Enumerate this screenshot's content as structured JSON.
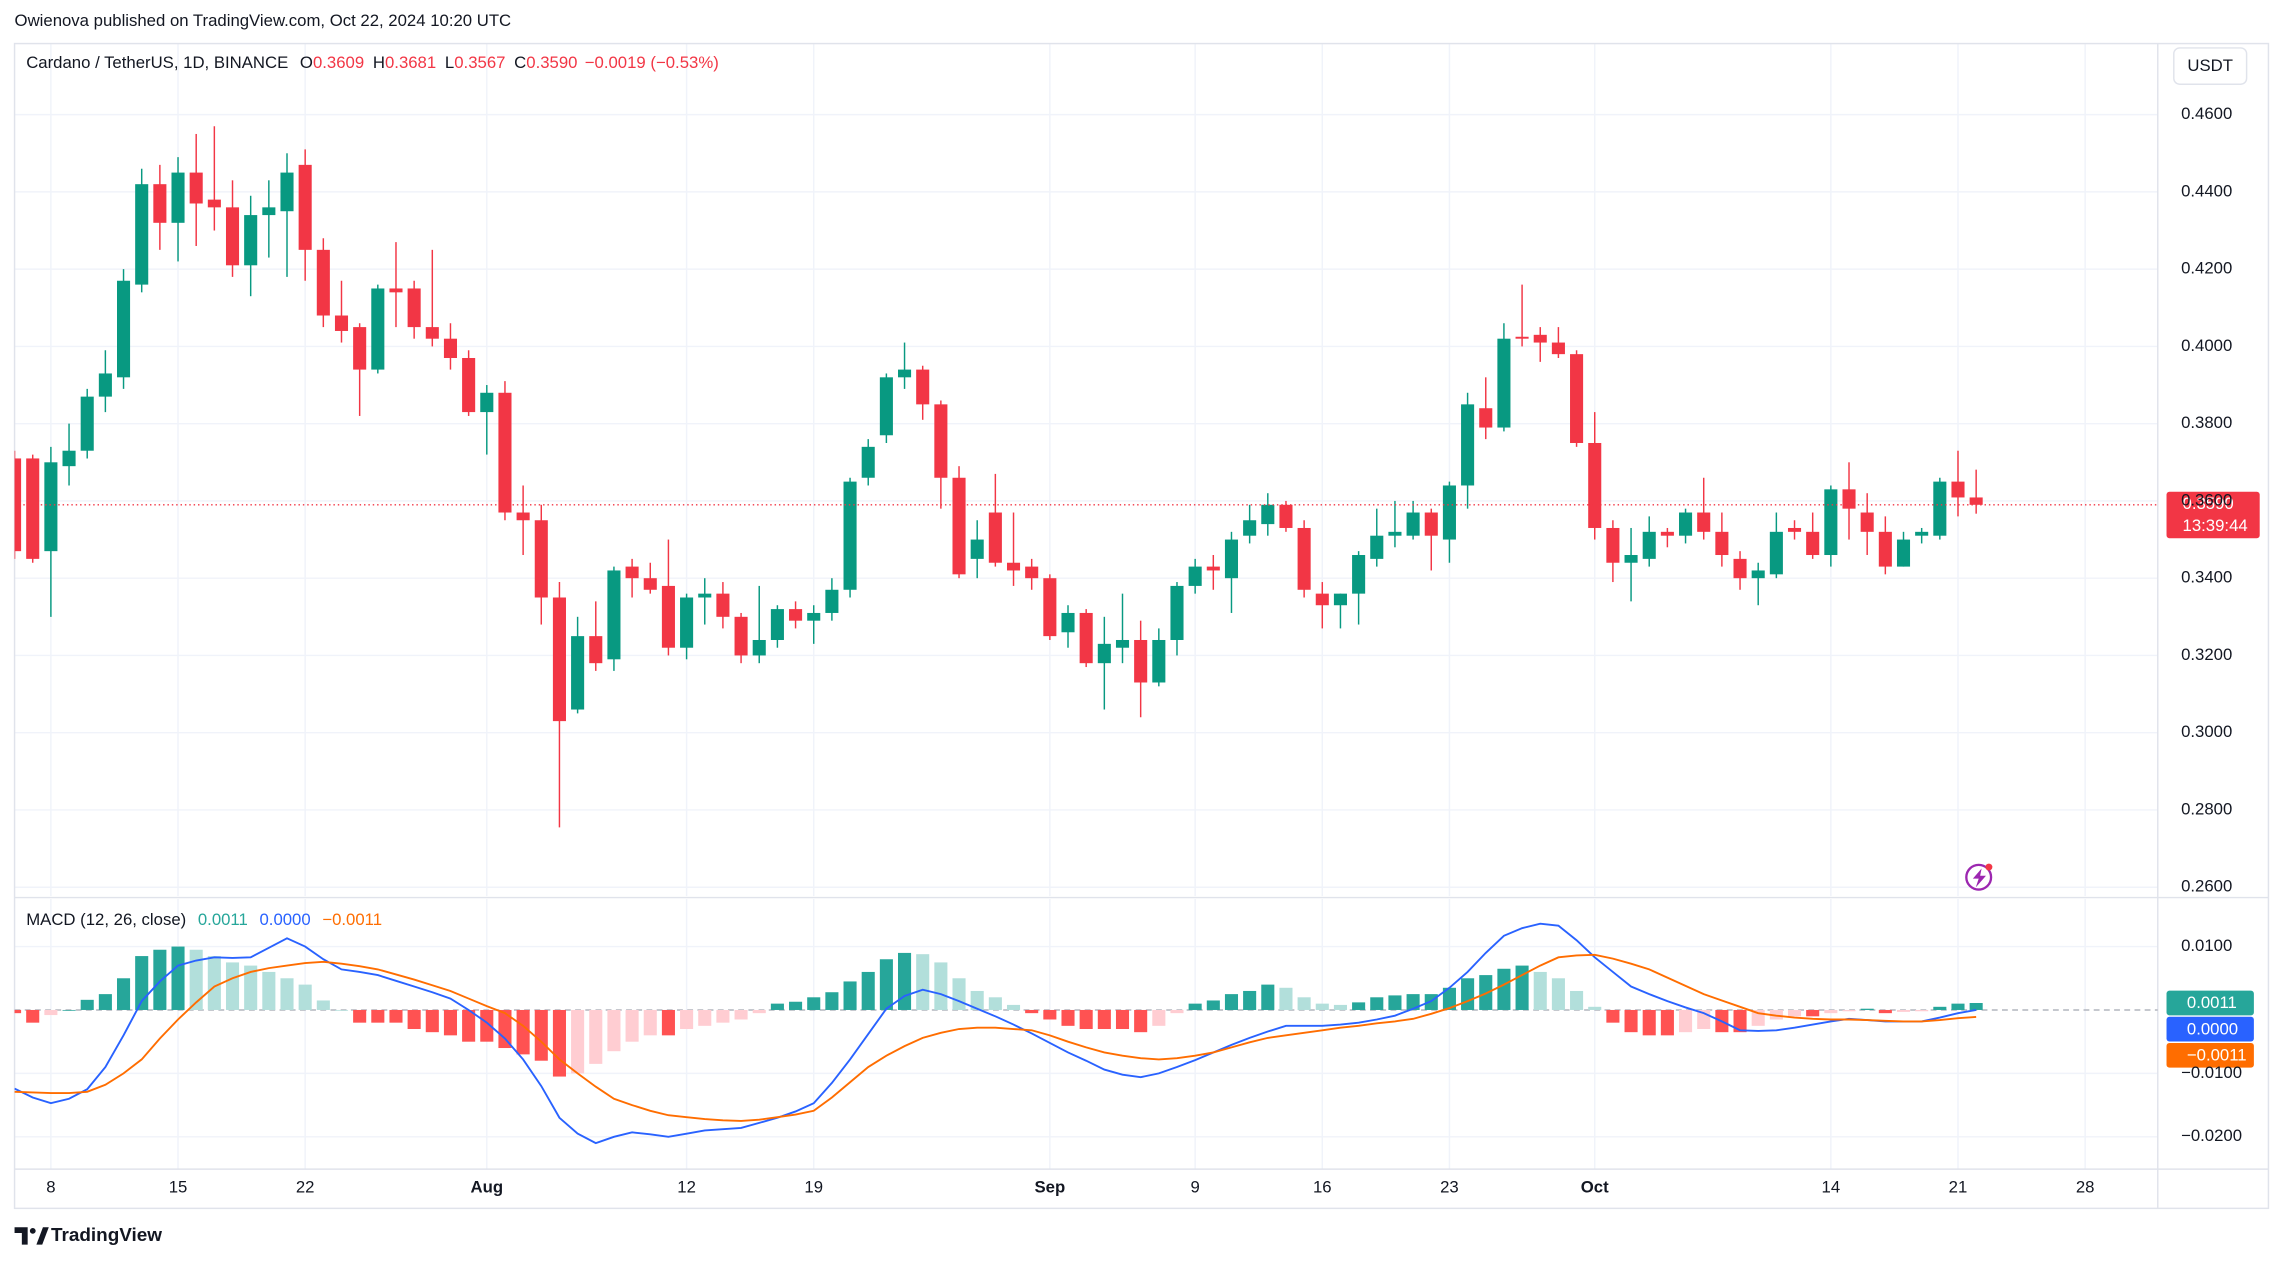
{
  "attribution": "Owienova published on TradingView.com, Oct 22, 2024 10:20 UTC",
  "currency": "USDT",
  "brand": "TradingView",
  "chart_data": [
    {
      "type": "candlestick",
      "legend": {
        "symbol": "Cardano / TetherUS, 1D, BINANCE",
        "ohlc": [
          {
            "key": "O",
            "value": "0.3609"
          },
          {
            "key": "H",
            "value": "0.3681"
          },
          {
            "key": "L",
            "value": "0.3567"
          },
          {
            "key": "C",
            "value": "0.3590"
          }
        ],
        "change": "−0.0019 (−0.53%)"
      },
      "last_price_label": "0.3590",
      "countdown": "13:39:44",
      "up_color": "#089981",
      "down_color": "#f23645",
      "grid": true,
      "xlim": [
        "2024-07-06",
        "2024-11-01"
      ],
      "xticks": [
        {
          "value": "2024-07-08",
          "label": "8"
        },
        {
          "value": "2024-07-15",
          "label": "15"
        },
        {
          "value": "2024-07-22",
          "label": "22"
        },
        {
          "value": "2024-08-01",
          "label": "Aug"
        },
        {
          "value": "2024-08-12",
          "label": "12"
        },
        {
          "value": "2024-08-19",
          "label": "19"
        },
        {
          "value": "2024-09-01",
          "label": "Sep"
        },
        {
          "value": "2024-09-09",
          "label": "9"
        },
        {
          "value": "2024-09-16",
          "label": "16"
        },
        {
          "value": "2024-09-23",
          "label": "23"
        },
        {
          "value": "2024-10-01",
          "label": "Oct"
        },
        {
          "value": "2024-10-14",
          "label": "14"
        },
        {
          "value": "2024-10-21",
          "label": "21"
        },
        {
          "value": "2024-10-28",
          "label": "28"
        }
      ],
      "ylim": [
        0.2577,
        0.4784
      ],
      "yticks": [
        {
          "value": 0.26,
          "label": "0.2600"
        },
        {
          "value": 0.28,
          "label": "0.2800"
        },
        {
          "value": 0.3,
          "label": "0.3000"
        },
        {
          "value": 0.32,
          "label": "0.3200"
        },
        {
          "value": 0.34,
          "label": "0.3400"
        },
        {
          "value": 0.36,
          "label": "0.3600"
        },
        {
          "value": 0.38,
          "label": "0.3800"
        },
        {
          "value": 0.4,
          "label": "0.4000"
        },
        {
          "value": 0.42,
          "label": "0.4200"
        },
        {
          "value": 0.44,
          "label": "0.4400"
        },
        {
          "value": 0.46,
          "label": "0.4600"
        }
      ],
      "x": [
        "2024-07-06",
        "2024-07-07",
        "2024-07-08",
        "2024-07-09",
        "2024-07-10",
        "2024-07-11",
        "2024-07-12",
        "2024-07-13",
        "2024-07-14",
        "2024-07-15",
        "2024-07-16",
        "2024-07-17",
        "2024-07-18",
        "2024-07-19",
        "2024-07-20",
        "2024-07-21",
        "2024-07-22",
        "2024-07-23",
        "2024-07-24",
        "2024-07-25",
        "2024-07-26",
        "2024-07-27",
        "2024-07-28",
        "2024-07-29",
        "2024-07-30",
        "2024-07-31",
        "2024-08-01",
        "2024-08-02",
        "2024-08-03",
        "2024-08-04",
        "2024-08-05",
        "2024-08-06",
        "2024-08-07",
        "2024-08-08",
        "2024-08-09",
        "2024-08-10",
        "2024-08-11",
        "2024-08-12",
        "2024-08-13",
        "2024-08-14",
        "2024-08-15",
        "2024-08-16",
        "2024-08-17",
        "2024-08-18",
        "2024-08-19",
        "2024-08-20",
        "2024-08-21",
        "2024-08-22",
        "2024-08-23",
        "2024-08-24",
        "2024-08-25",
        "2024-08-26",
        "2024-08-27",
        "2024-08-28",
        "2024-08-29",
        "2024-08-30",
        "2024-08-31",
        "2024-09-01",
        "2024-09-02",
        "2024-09-03",
        "2024-09-04",
        "2024-09-05",
        "2024-09-06",
        "2024-09-07",
        "2024-09-08",
        "2024-09-09",
        "2024-09-10",
        "2024-09-11",
        "2024-09-12",
        "2024-09-13",
        "2024-09-14",
        "2024-09-15",
        "2024-09-16",
        "2024-09-17",
        "2024-09-18",
        "2024-09-19",
        "2024-09-20",
        "2024-09-21",
        "2024-09-22",
        "2024-09-23",
        "2024-09-24",
        "2024-09-25",
        "2024-09-26",
        "2024-09-27",
        "2024-09-28",
        "2024-09-29",
        "2024-09-30",
        "2024-10-01",
        "2024-10-02",
        "2024-10-03",
        "2024-10-04",
        "2024-10-05",
        "2024-10-06",
        "2024-10-07",
        "2024-10-08",
        "2024-10-09",
        "2024-10-10",
        "2024-10-11",
        "2024-10-12",
        "2024-10-13",
        "2024-10-14",
        "2024-10-15",
        "2024-10-16",
        "2024-10-17",
        "2024-10-18",
        "2024-10-19",
        "2024-10-20",
        "2024-10-21",
        "2024-10-22"
      ],
      "open": [
        0.371,
        0.371,
        0.347,
        0.369,
        0.373,
        0.387,
        0.392,
        0.416,
        0.442,
        0.432,
        0.445,
        0.438,
        0.436,
        0.421,
        0.434,
        0.435,
        0.447,
        0.425,
        0.408,
        0.405,
        0.394,
        0.415,
        0.415,
        0.405,
        0.402,
        0.397,
        0.383,
        0.388,
        0.357,
        0.355,
        0.335,
        0.306,
        0.325,
        0.319,
        0.343,
        0.34,
        0.338,
        0.322,
        0.335,
        0.336,
        0.33,
        0.32,
        0.324,
        0.332,
        0.329,
        0.331,
        0.337,
        0.366,
        0.377,
        0.392,
        0.394,
        0.385,
        0.366,
        0.345,
        0.357,
        0.344,
        0.343,
        0.34,
        0.326,
        0.331,
        0.318,
        0.322,
        0.324,
        0.313,
        0.324,
        0.338,
        0.343,
        0.34,
        0.351,
        0.354,
        0.359,
        0.353,
        0.336,
        0.333,
        0.336,
        0.345,
        0.351,
        0.351,
        0.357,
        0.35,
        0.364,
        0.384,
        0.379,
        0.4025,
        0.403,
        0.401,
        0.398,
        0.375,
        0.353,
        0.344,
        0.345,
        0.352,
        0.351,
        0.357,
        0.352,
        0.345,
        0.34,
        0.341,
        0.353,
        0.352,
        0.346,
        0.363,
        0.357,
        0.352,
        0.343,
        0.351,
        0.351,
        0.365,
        0.3609
      ],
      "high": [
        0.373,
        0.372,
        0.374,
        0.38,
        0.389,
        0.399,
        0.42,
        0.446,
        0.447,
        0.449,
        0.455,
        0.457,
        0.443,
        0.439,
        0.443,
        0.45,
        0.451,
        0.428,
        0.417,
        0.406,
        0.416,
        0.427,
        0.417,
        0.425,
        0.406,
        0.399,
        0.39,
        0.391,
        0.364,
        0.359,
        0.339,
        0.33,
        0.334,
        0.343,
        0.345,
        0.344,
        0.35,
        0.336,
        0.34,
        0.339,
        0.331,
        0.338,
        0.333,
        0.334,
        0.333,
        0.34,
        0.366,
        0.376,
        0.393,
        0.401,
        0.395,
        0.386,
        0.369,
        0.355,
        0.367,
        0.357,
        0.345,
        0.341,
        0.333,
        0.332,
        0.33,
        0.336,
        0.329,
        0.327,
        0.339,
        0.345,
        0.346,
        0.352,
        0.359,
        0.362,
        0.36,
        0.355,
        0.339,
        0.336,
        0.347,
        0.358,
        0.36,
        0.36,
        0.358,
        0.365,
        0.388,
        0.392,
        0.406,
        0.416,
        0.405,
        0.405,
        0.399,
        0.383,
        0.355,
        0.353,
        0.356,
        0.353,
        0.358,
        0.366,
        0.357,
        0.347,
        0.344,
        0.357,
        0.355,
        0.357,
        0.364,
        0.37,
        0.362,
        0.356,
        0.352,
        0.353,
        0.366,
        0.373,
        0.3681
      ],
      "low": [
        0.345,
        0.344,
        0.33,
        0.364,
        0.371,
        0.383,
        0.389,
        0.414,
        0.425,
        0.422,
        0.426,
        0.43,
        0.418,
        0.413,
        0.423,
        0.418,
        0.417,
        0.405,
        0.401,
        0.382,
        0.393,
        0.405,
        0.402,
        0.4,
        0.394,
        0.382,
        0.372,
        0.355,
        0.346,
        0.328,
        0.2755,
        0.305,
        0.316,
        0.316,
        0.335,
        0.336,
        0.32,
        0.319,
        0.328,
        0.327,
        0.318,
        0.318,
        0.322,
        0.327,
        0.323,
        0.329,
        0.335,
        0.364,
        0.375,
        0.389,
        0.381,
        0.358,
        0.34,
        0.34,
        0.343,
        0.338,
        0.337,
        0.324,
        0.322,
        0.317,
        0.306,
        0.318,
        0.304,
        0.312,
        0.32,
        0.336,
        0.337,
        0.331,
        0.349,
        0.351,
        0.352,
        0.335,
        0.327,
        0.327,
        0.328,
        0.343,
        0.348,
        0.35,
        0.342,
        0.344,
        0.358,
        0.376,
        0.378,
        0.4,
        0.396,
        0.397,
        0.374,
        0.35,
        0.339,
        0.334,
        0.343,
        0.348,
        0.349,
        0.35,
        0.343,
        0.337,
        0.333,
        0.34,
        0.35,
        0.345,
        0.343,
        0.35,
        0.346,
        0.341,
        0.343,
        0.349,
        0.35,
        0.356,
        0.3567
      ],
      "close": [
        0.347,
        0.345,
        0.37,
        0.373,
        0.387,
        0.393,
        0.417,
        0.442,
        0.432,
        0.445,
        0.437,
        0.436,
        0.421,
        0.434,
        0.436,
        0.445,
        0.425,
        0.408,
        0.404,
        0.394,
        0.415,
        0.414,
        0.405,
        0.402,
        0.397,
        0.383,
        0.388,
        0.357,
        0.355,
        0.335,
        0.303,
        0.325,
        0.318,
        0.342,
        0.34,
        0.337,
        0.322,
        0.335,
        0.336,
        0.33,
        0.32,
        0.324,
        0.332,
        0.329,
        0.331,
        0.337,
        0.365,
        0.374,
        0.392,
        0.394,
        0.385,
        0.366,
        0.341,
        0.35,
        0.344,
        0.342,
        0.34,
        0.325,
        0.331,
        0.318,
        0.323,
        0.324,
        0.313,
        0.324,
        0.338,
        0.343,
        0.342,
        0.35,
        0.355,
        0.359,
        0.353,
        0.337,
        0.333,
        0.336,
        0.346,
        0.351,
        0.352,
        0.357,
        0.351,
        0.364,
        0.385,
        0.379,
        0.402,
        0.402,
        0.401,
        0.398,
        0.375,
        0.353,
        0.344,
        0.346,
        0.352,
        0.351,
        0.357,
        0.352,
        0.346,
        0.34,
        0.342,
        0.352,
        0.352,
        0.346,
        0.363,
        0.358,
        0.352,
        0.343,
        0.35,
        0.352,
        0.365,
        0.3609,
        0.359
      ]
    },
    {
      "type": "macd",
      "title": "MACD (12, 26, close)",
      "ylim": [
        -0.0251,
        0.0175
      ],
      "yticks": [
        {
          "value": 0.01,
          "label": "0.0100"
        },
        {
          "value": -0.01,
          "label": "−0.0100"
        },
        {
          "value": -0.02,
          "label": "−0.0200"
        }
      ],
      "series": [
        {
          "type": "histogram",
          "color": "#26a69a",
          "colors": {
            "rise_above": "#26a69a",
            "fall_above": "#b2dfdb",
            "rise_below": "#ffcdd2",
            "fall_below": "#ff5252"
          },
          "last_label": "0.0011",
          "values": [
            -0.0005,
            -0.002,
            -0.0008,
            0,
            0.0016,
            0.0025,
            0.005,
            0.0085,
            0.0095,
            0.01,
            0.0095,
            0.0085,
            0.0075,
            0.007,
            0.006,
            0.005,
            0.004,
            0.0015,
            0,
            -0.002,
            -0.002,
            -0.002,
            -0.003,
            -0.0035,
            -0.004,
            -0.005,
            -0.005,
            -0.006,
            -0.007,
            -0.008,
            -0.0105,
            -0.01,
            -0.0085,
            -0.0065,
            -0.005,
            -0.004,
            -0.004,
            -0.003,
            -0.0025,
            -0.002,
            -0.0015,
            -0.0005,
            0.001,
            0.0013,
            0.002,
            0.0028,
            0.0045,
            0.006,
            0.008,
            0.009,
            0.0088,
            0.0075,
            0.005,
            0.003,
            0.002,
            0.0008,
            -0.0005,
            -0.0015,
            -0.0025,
            -0.003,
            -0.003,
            -0.003,
            -0.0035,
            -0.0025,
            -0.0005,
            0.001,
            0.0015,
            0.0025,
            0.003,
            0.004,
            0.0035,
            0.002,
            0.001,
            0.0008,
            0.0012,
            0.002,
            0.0023,
            0.0025,
            0.0025,
            0.0035,
            0.005,
            0.0055,
            0.0065,
            0.007,
            0.006,
            0.005,
            0.003,
            0.0005,
            -0.002,
            -0.0035,
            -0.004,
            -0.004,
            -0.0035,
            -0.003,
            -0.0035,
            -0.0035,
            -0.0025,
            -0.0015,
            -0.001,
            -0.001,
            -0.0005,
            -0.0002,
            0.0002,
            -0.0005,
            -0.0003,
            -0.0002,
            0.0005,
            0.001,
            0.0011
          ]
        },
        {
          "type": "line",
          "color": "#2962ff",
          "last_label": "0.0000",
          "values": [
            -0.0124,
            -0.0138,
            -0.0147,
            -0.014,
            -0.0125,
            -0.009,
            -0.004,
            0.0014,
            0.0045,
            0.007,
            0.0078,
            0.0083,
            0.0082,
            0.0083,
            0.0098,
            0.0113,
            0.01,
            0.008,
            0.0064,
            0.006,
            0.0055,
            0.0046,
            0.0037,
            0.0028,
            0.0018,
            0,
            -0.002,
            -0.0045,
            -0.0078,
            -0.012,
            -0.017,
            -0.0195,
            -0.021,
            -0.02,
            -0.0193,
            -0.0196,
            -0.02,
            -0.0195,
            -0.019,
            -0.0188,
            -0.0186,
            -0.0178,
            -0.017,
            -0.016,
            -0.0147,
            -0.0115,
            -0.0078,
            -0.0038,
            0.0002,
            0.0022,
            0.0032,
            0.0025,
            0.0014,
            0.0002,
            -0.001,
            -0.0023,
            -0.0037,
            -0.0052,
            -0.0067,
            -0.008,
            -0.0094,
            -0.0102,
            -0.0106,
            -0.01,
            -0.009,
            -0.0079,
            -0.0067,
            -0.0055,
            -0.0044,
            -0.0034,
            -0.0025,
            -0.0025,
            -0.0025,
            -0.0023,
            -0.002,
            -0.0015,
            -0.0009,
            0.0002,
            0.0014,
            0.0035,
            0.006,
            0.009,
            0.0117,
            0.0129,
            0.0136,
            0.0133,
            0.011,
            0.0083,
            0.006,
            0.0037,
            0.0025,
            0.0014,
            0.0004,
            -0.0005,
            -0.0018,
            -0.0032,
            -0.0033,
            -0.0032,
            -0.0028,
            -0.0023,
            -0.0018,
            -0.0014,
            -0.0016,
            -0.0018,
            -0.0018,
            -0.0018,
            -0.0012,
            -0.0005,
            0
          ]
        },
        {
          "type": "line",
          "color": "#ff6d00",
          "last_label": "−0.0011",
          "values": [
            -0.0129,
            -0.013,
            -0.0131,
            -0.0131,
            -0.0129,
            -0.0118,
            -0.01,
            -0.0078,
            -0.0045,
            -0.0015,
            0.0012,
            0.0037,
            0.005,
            0.006,
            0.0066,
            0.007,
            0.0074,
            0.0076,
            0.0073,
            0.0069,
            0.0064,
            0.0056,
            0.0048,
            0.0039,
            0.003,
            0.0018,
            0.0006,
            -0.0005,
            -0.0025,
            -0.005,
            -0.0078,
            -0.01,
            -0.0121,
            -0.014,
            -0.015,
            -0.0159,
            -0.0166,
            -0.0169,
            -0.0172,
            -0.0174,
            -0.0175,
            -0.0173,
            -0.0169,
            -0.0165,
            -0.0159,
            -0.0138,
            -0.0114,
            -0.009,
            -0.0072,
            -0.0057,
            -0.0044,
            -0.0036,
            -0.003,
            -0.0028,
            -0.0028,
            -0.003,
            -0.0032,
            -0.004,
            -0.005,
            -0.0059,
            -0.0067,
            -0.0072,
            -0.0076,
            -0.0078,
            -0.0076,
            -0.0072,
            -0.0067,
            -0.0059,
            -0.0051,
            -0.0044,
            -0.004,
            -0.0036,
            -0.0032,
            -0.0028,
            -0.0025,
            -0.0021,
            -0.0018,
            -0.0014,
            -0.0006,
            0.0003,
            0.0014,
            0.0026,
            0.004,
            0.0055,
            0.007,
            0.0083,
            0.0086,
            0.0087,
            0.0081,
            0.0073,
            0.0064,
            0.0051,
            0.0038,
            0.0025,
            0.0015,
            0.0005,
            -0.0005,
            -0.0009,
            -0.0012,
            -0.0014,
            -0.0015,
            -0.0015,
            -0.0016,
            -0.0017,
            -0.0018,
            -0.0018,
            -0.0016,
            -0.0013,
            -0.0011
          ]
        }
      ]
    }
  ]
}
